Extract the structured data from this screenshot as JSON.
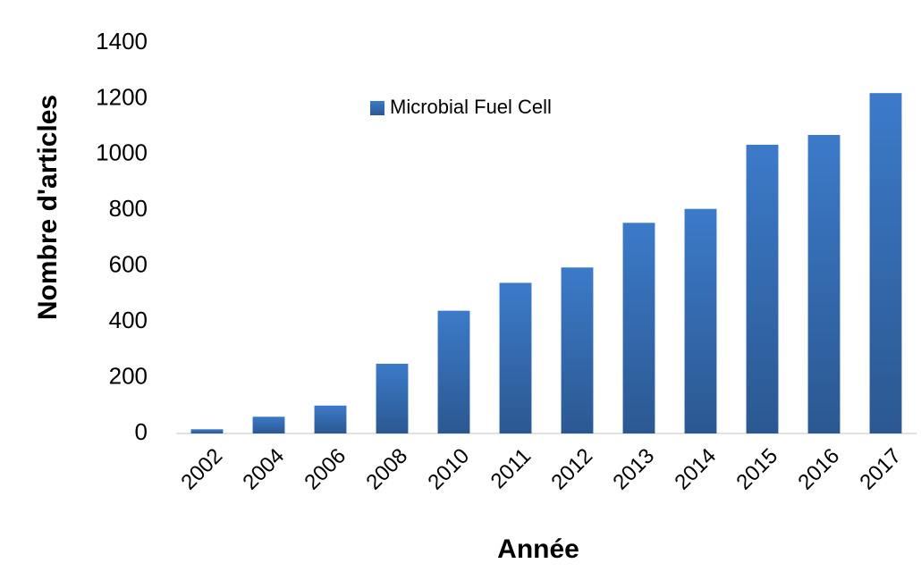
{
  "chart_data": {
    "type": "bar",
    "x_label": "Année",
    "y_label": "Nombre d'articles",
    "categories": [
      "2002",
      "2004",
      "2006",
      "2008",
      "2010",
      "2011",
      "2012",
      "2013",
      "2014",
      "2015",
      "2016",
      "2017"
    ],
    "series": [
      {
        "name": "Microbial Fuel Cell",
        "color": "#3c7ac9",
        "values": [
          15,
          60,
          100,
          250,
          440,
          540,
          595,
          755,
          805,
          1035,
          1070,
          1220
        ]
      }
    ],
    "ylim": [
      0,
      1400
    ],
    "yticks": [
      0,
      200,
      400,
      600,
      800,
      1000,
      1200,
      1400
    ],
    "grid": false,
    "legend": "upper left"
  }
}
